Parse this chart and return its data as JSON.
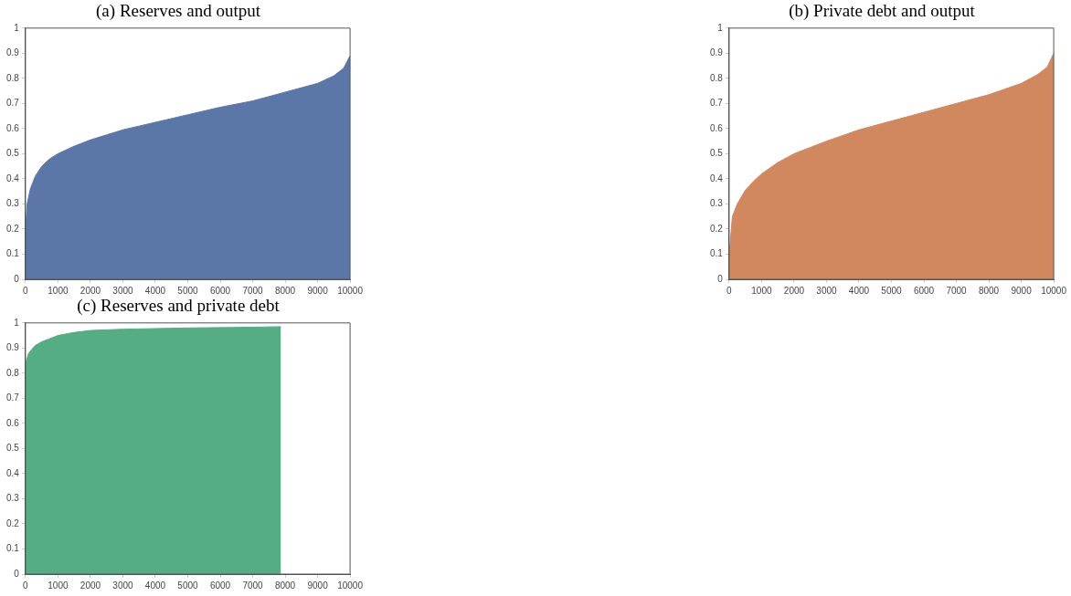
{
  "chart_data": [
    {
      "type": "area",
      "title": "(a) Reserves and output",
      "xlim": [
        0,
        10000
      ],
      "xticks": [
        0,
        1000,
        2000,
        3000,
        4000,
        5000,
        6000,
        7000,
        8000,
        9000,
        10000
      ],
      "ylim": [
        0,
        1
      ],
      "yticks": [
        0,
        0.1,
        0.2,
        0.3,
        0.4,
        0.5,
        0.6,
        0.7,
        0.8,
        0.9,
        1
      ],
      "grid": false,
      "series": [
        {
          "color": "#5b77a8",
          "x": [
            1,
            50,
            150,
            300,
            500,
            750,
            1000,
            1500,
            2000,
            2500,
            3000,
            3500,
            4000,
            5000,
            6000,
            7000,
            8000,
            9000,
            9500,
            9800,
            10000
          ],
          "values": [
            0.2,
            0.3,
            0.36,
            0.41,
            0.45,
            0.48,
            0.5,
            0.53,
            0.555,
            0.575,
            0.595,
            0.61,
            0.625,
            0.655,
            0.685,
            0.71,
            0.745,
            0.78,
            0.81,
            0.84,
            0.89
          ]
        }
      ]
    },
    {
      "type": "area",
      "title": "(b) Private debt and output",
      "xlim": [
        0,
        10000
      ],
      "xticks": [
        0,
        1000,
        2000,
        3000,
        4000,
        5000,
        6000,
        7000,
        8000,
        9000,
        10000
      ],
      "ylim": [
        0,
        1
      ],
      "yticks": [
        0,
        0.1,
        0.2,
        0.3,
        0.4,
        0.5,
        0.6,
        0.7,
        0.8,
        0.9,
        1
      ],
      "grid": false,
      "series": [
        {
          "color": "#d2885e",
          "x": [
            1,
            100,
            250,
            500,
            750,
            1000,
            1500,
            2000,
            2500,
            3000,
            4000,
            5000,
            6000,
            7000,
            8000,
            9000,
            9500,
            9800,
            10000
          ],
          "values": [
            0.1,
            0.25,
            0.3,
            0.355,
            0.39,
            0.42,
            0.465,
            0.5,
            0.525,
            0.55,
            0.595,
            0.63,
            0.665,
            0.7,
            0.735,
            0.78,
            0.815,
            0.845,
            0.9
          ]
        }
      ]
    },
    {
      "type": "area",
      "title": "(c) Reserves and private debt",
      "xlim": [
        0,
        10000
      ],
      "xticks": [
        0,
        1000,
        2000,
        3000,
        4000,
        5000,
        6000,
        7000,
        8000,
        9000,
        10000
      ],
      "ylim": [
        0,
        1
      ],
      "yticks": [
        0,
        0.1,
        0.2,
        0.3,
        0.4,
        0.5,
        0.6,
        0.7,
        0.8,
        0.9,
        1
      ],
      "grid": false,
      "series": [
        {
          "color": "#55ad83",
          "x": [
            1,
            100,
            300,
            500,
            1000,
            1500,
            2000,
            3000,
            5000,
            7000,
            7870
          ],
          "values": [
            0.84,
            0.88,
            0.91,
            0.925,
            0.95,
            0.962,
            0.97,
            0.975,
            0.98,
            0.983,
            0.985
          ]
        }
      ]
    }
  ]
}
